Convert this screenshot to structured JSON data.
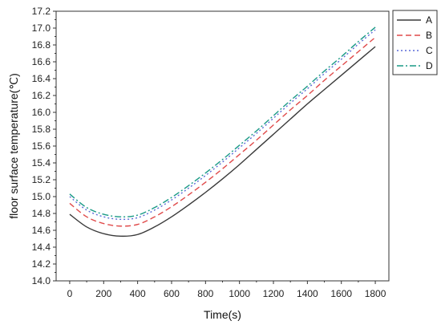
{
  "chart_data": {
    "type": "line",
    "title": "",
    "xlabel": "Time(s)",
    "ylabel": "floor surface temperature(℃)",
    "xlim": [
      -80,
      1880
    ],
    "ylim": [
      14.0,
      17.2
    ],
    "x_ticks": [
      "0",
      "200",
      "400",
      "600",
      "800",
      "1000",
      "1200",
      "1400",
      "1600",
      "1800"
    ],
    "y_ticks": [
      "14.0",
      "14.2",
      "14.4",
      "14.6",
      "14.8",
      "15.0",
      "15.2",
      "15.4",
      "15.6",
      "15.8",
      "16.0",
      "16.2",
      "16.4",
      "16.6",
      "16.8",
      "17.0",
      "17.2"
    ],
    "grid": false,
    "legend_position": "top-right outside plot",
    "x": [
      0,
      100,
      200,
      300,
      400,
      500,
      600,
      700,
      800,
      900,
      1000,
      1100,
      1200,
      1300,
      1400,
      1500,
      1600,
      1700,
      1800
    ],
    "series": [
      {
        "name": "A",
        "color": "#3a3a3a",
        "dash": "solid",
        "values": [
          14.79,
          14.64,
          14.56,
          14.53,
          14.55,
          14.64,
          14.76,
          14.9,
          15.05,
          15.21,
          15.38,
          15.56,
          15.74,
          15.92,
          16.1,
          16.27,
          16.44,
          16.61,
          16.78
        ]
      },
      {
        "name": "B",
        "color": "#e04a4a",
        "dash": "dashed",
        "values": [
          14.92,
          14.76,
          14.68,
          14.65,
          14.67,
          14.76,
          14.88,
          15.02,
          15.17,
          15.33,
          15.5,
          15.67,
          15.85,
          16.03,
          16.2,
          16.38,
          16.55,
          16.72,
          16.89
        ]
      },
      {
        "name": "C",
        "color": "#5a6ad8",
        "dash": "dotted",
        "values": [
          15.0,
          14.84,
          14.76,
          14.73,
          14.75,
          14.84,
          14.96,
          15.1,
          15.25,
          15.41,
          15.58,
          15.75,
          15.93,
          16.11,
          16.28,
          16.46,
          16.63,
          16.81,
          16.98
        ]
      },
      {
        "name": "D",
        "color": "#1a9a86",
        "dash": "dashdot",
        "values": [
          15.03,
          14.87,
          14.79,
          14.76,
          14.78,
          14.87,
          14.99,
          15.13,
          15.28,
          15.44,
          15.61,
          15.78,
          15.96,
          16.14,
          16.31,
          16.49,
          16.66,
          16.84,
          17.01
        ]
      }
    ]
  }
}
